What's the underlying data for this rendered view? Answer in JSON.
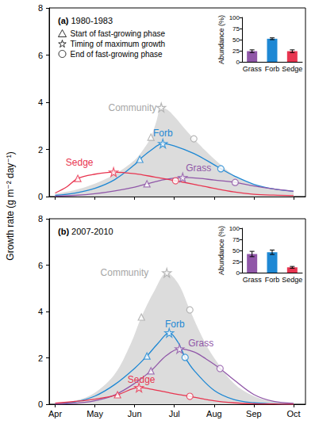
{
  "chart_data": [
    {
      "type": "line",
      "title": "(a) 1980-1983",
      "ylabel": "Growth rate (g m⁻² day⁻¹)",
      "xlim": [
        3.85,
        10.3
      ],
      "xticks": [
        {
          "value": 4,
          "label": "Apr"
        },
        {
          "value": 5,
          "label": "May"
        },
        {
          "value": 6,
          "label": "Jun"
        },
        {
          "value": 7,
          "label": "Jul"
        },
        {
          "value": 8,
          "label": "Aug"
        },
        {
          "value": 9,
          "label": "Sep"
        },
        {
          "value": 10,
          "label": "Oct"
        }
      ],
      "ylim": [
        0,
        8
      ],
      "yticks": [
        0,
        2,
        4,
        6,
        8
      ],
      "grid": false,
      "tick_labels": "y",
      "legend": "upper left",
      "series": [
        {
          "name": "Community",
          "type": "area",
          "color": "#dcdcdc",
          "x": [
            4,
            4.5,
            5,
            5.5,
            6,
            6.2,
            6.41,
            6.55,
            6.67,
            6.85,
            7.05,
            7.25,
            7.49,
            7.75,
            8,
            8.5,
            9,
            9.5,
            10
          ],
          "values": [
            0.12,
            0.28,
            0.55,
            0.95,
            1.55,
            1.95,
            2.52,
            3.2,
            3.78,
            3.65,
            3.3,
            2.9,
            2.45,
            2.0,
            1.6,
            0.9,
            0.5,
            0.32,
            0.22
          ]
        },
        {
          "name": "Forb",
          "type": "line",
          "color": "#1e88d4",
          "x": [
            4,
            4.5,
            5,
            5.5,
            6,
            6.13,
            6.4,
            6.71,
            7,
            7.5,
            8,
            8.17,
            8.5,
            9,
            9.5,
            10
          ],
          "values": [
            0.05,
            0.15,
            0.35,
            0.72,
            1.35,
            1.58,
            1.95,
            2.25,
            2.15,
            1.82,
            1.35,
            1.18,
            0.88,
            0.52,
            0.32,
            0.22
          ]
        },
        {
          "name": "Grass",
          "type": "line",
          "color": "#9057a8",
          "x": [
            4,
            4.5,
            5,
            5.5,
            6,
            6.31,
            6.75,
            7.21,
            7.6,
            8,
            8.53,
            9,
            9.5,
            10
          ],
          "values": [
            0.02,
            0.05,
            0.12,
            0.24,
            0.4,
            0.54,
            0.72,
            0.81,
            0.78,
            0.7,
            0.6,
            0.45,
            0.32,
            0.22
          ]
        },
        {
          "name": "Sedge",
          "type": "line",
          "color": "#e83550",
          "x": [
            4,
            4.3,
            4.57,
            5,
            5.47,
            6,
            6.5,
            7.03,
            7.5,
            8,
            8.5,
            9,
            9.5,
            10
          ],
          "values": [
            0.15,
            0.42,
            0.77,
            0.95,
            1.04,
            0.97,
            0.83,
            0.67,
            0.52,
            0.35,
            0.2,
            0.1,
            0.06,
            0.04
          ]
        },
        {
          "name": "Start of fast-growing phase",
          "type": "scatter",
          "marker": "triangle",
          "x": [
            6.41,
            6.13,
            6.31,
            4.57
          ],
          "values": [
            2.52,
            1.58,
            0.54,
            0.77
          ],
          "colors": [
            "#a6a6a6",
            "#1e88d4",
            "#9057a8",
            "#e83550"
          ]
        },
        {
          "name": "Timing of maximum growth",
          "type": "scatter",
          "marker": "star",
          "x": [
            6.67,
            6.71,
            7.21,
            5.47
          ],
          "values": [
            3.78,
            2.25,
            0.81,
            1.04
          ],
          "colors": [
            "#a6a6a6",
            "#1e88d4",
            "#9057a8",
            "#e83550"
          ]
        },
        {
          "name": "End of fast-growing phase",
          "type": "scatter",
          "marker": "circle",
          "x": [
            7.49,
            8.17,
            8.53,
            7.03
          ],
          "values": [
            2.45,
            1.18,
            0.6,
            0.67
          ],
          "colors": [
            "#a6a6a6",
            "#1e88d4",
            "#9057a8",
            "#e83550"
          ]
        }
      ]
    },
    {
      "type": "bar",
      "ylabel": "Abundance (%)",
      "categories": [
        "Grass",
        "Forb",
        "Sedge"
      ],
      "values": [
        24,
        52,
        24
      ],
      "errors": [
        3,
        2,
        3
      ],
      "colors": [
        "#9057a8",
        "#1e88d4",
        "#e83550"
      ],
      "ylim": [
        0,
        100
      ],
      "yticks": [
        0,
        25,
        50,
        75,
        100
      ],
      "grid": false
    },
    {
      "type": "line",
      "title": "(b) 2007-2010",
      "xlim": [
        3.85,
        10.3
      ],
      "xticks": [
        {
          "value": 4,
          "label": "Apr"
        },
        {
          "value": 5,
          "label": "May"
        },
        {
          "value": 6,
          "label": "Jun"
        },
        {
          "value": 7,
          "label": "Jul"
        },
        {
          "value": 8,
          "label": "Aug"
        },
        {
          "value": 9,
          "label": "Sep"
        },
        {
          "value": 10,
          "label": "Oct"
        }
      ],
      "ylim": [
        0,
        8
      ],
      "yticks": [
        0,
        2,
        4,
        6,
        8
      ],
      "grid": false,
      "series": [
        {
          "name": "Community",
          "type": "area",
          "color": "#dcdcdc",
          "x": [
            4,
            4.5,
            5,
            5.5,
            5.9,
            6.17,
            6.5,
            6.81,
            7.1,
            7.39,
            7.7,
            8,
            8.5,
            9,
            9.5,
            10
          ],
          "values": [
            0.05,
            0.15,
            0.5,
            1.3,
            2.6,
            3.76,
            4.9,
            5.67,
            5.2,
            4.07,
            2.9,
            2.0,
            0.9,
            0.35,
            0.12,
            0.05
          ]
        },
        {
          "name": "Forb",
          "type": "line",
          "color": "#1e88d4",
          "x": [
            4,
            4.5,
            5,
            5.5,
            6,
            6.31,
            6.6,
            6.87,
            7.1,
            7.27,
            7.5,
            8,
            8.5,
            9,
            9.5,
            10
          ],
          "values": [
            0.02,
            0.1,
            0.35,
            0.85,
            1.55,
            2.08,
            2.65,
            3.08,
            2.65,
            2.02,
            1.45,
            0.6,
            0.2,
            0.06,
            0.02,
            0.01
          ]
        },
        {
          "name": "Grass",
          "type": "line",
          "color": "#9057a8",
          "x": [
            4,
            4.5,
            5,
            5.5,
            6,
            6.41,
            6.8,
            7.13,
            7.5,
            7.8,
            8.15,
            8.5,
            9,
            9.5,
            10
          ],
          "values": [
            0.01,
            0.04,
            0.15,
            0.4,
            0.9,
            1.44,
            2.1,
            2.39,
            2.25,
            1.95,
            1.54,
            1.05,
            0.42,
            0.12,
            0.04
          ]
        },
        {
          "name": "Sedge",
          "type": "line",
          "color": "#e83550",
          "x": [
            4,
            4.5,
            5,
            5.57,
            6.11,
            6.5,
            7,
            7.39,
            8,
            8.5,
            9,
            9.5,
            10
          ],
          "values": [
            0.05,
            0.12,
            0.22,
            0.41,
            0.72,
            0.62,
            0.45,
            0.34,
            0.15,
            0.06,
            0.02,
            0.01,
            0.0
          ]
        },
        {
          "name": "Start of fast-growing phase",
          "type": "scatter",
          "marker": "triangle",
          "x": [
            6.17,
            6.31,
            6.41,
            5.57
          ],
          "values": [
            3.76,
            2.08,
            1.44,
            0.41
          ],
          "colors": [
            "#a6a6a6",
            "#1e88d4",
            "#9057a8",
            "#e83550"
          ]
        },
        {
          "name": "Timing of maximum growth",
          "type": "scatter",
          "marker": "star",
          "x": [
            6.81,
            6.87,
            7.13,
            6.11
          ],
          "values": [
            5.67,
            3.08,
            2.39,
            0.72
          ],
          "colors": [
            "#a6a6a6",
            "#1e88d4",
            "#9057a8",
            "#e83550"
          ]
        },
        {
          "name": "End of fast-growing phase",
          "type": "scatter",
          "marker": "circle",
          "x": [
            7.39,
            7.27,
            8.15,
            7.39
          ],
          "values": [
            4.07,
            2.02,
            1.54,
            0.34
          ],
          "colors": [
            "#a6a6a6",
            "#1e88d4",
            "#9057a8",
            "#e83550"
          ]
        }
      ]
    },
    {
      "type": "bar",
      "ylabel": "Abundance (%)",
      "categories": [
        "Grass",
        "Forb",
        "Sedge"
      ],
      "values": [
        42,
        46,
        12
      ],
      "errors": [
        6,
        5,
        2
      ],
      "colors": [
        "#9057a8",
        "#1e88d4",
        "#e83550"
      ],
      "ylim": [
        0,
        100
      ],
      "yticks": [
        0,
        25,
        50,
        75,
        100
      ],
      "grid": false
    }
  ]
}
